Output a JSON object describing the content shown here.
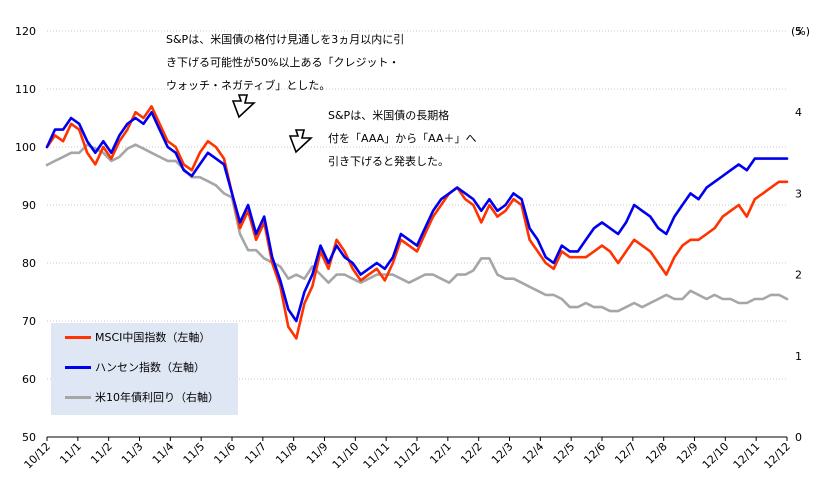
{
  "chart_data": {
    "type": "line",
    "title": "",
    "left_axis": {
      "ylim": [
        50,
        120
      ],
      "ticks": [
        50,
        60,
        70,
        80,
        90,
        100,
        110,
        120
      ]
    },
    "right_axis": {
      "ylim": [
        0,
        5
      ],
      "ticks": [
        0,
        1,
        2,
        3,
        4,
        5
      ],
      "unit": "(%)"
    },
    "grid": "dotted horizontal",
    "x_labels": [
      "10/12",
      "11/1",
      "11/2",
      "11/3",
      "11/4",
      "11/5",
      "11/6",
      "11/7",
      "11/8",
      "11/9",
      "11/10",
      "11/11",
      "11/12",
      "12/1",
      "12/2",
      "12/3",
      "12/4",
      "12/5",
      "12/6",
      "12/7",
      "12/8",
      "12/9",
      "12/10",
      "12/11",
      "12/12"
    ],
    "series": [
      {
        "name": "MSCI中国指数（左軸）",
        "axis": "left",
        "color": "#ff3300",
        "values": [
          100,
          102,
          101,
          104,
          103,
          99,
          97,
          100,
          98,
          101,
          103,
          106,
          105,
          107,
          104,
          101,
          100,
          97,
          96,
          99,
          101,
          100,
          98,
          92,
          86,
          89,
          84,
          87,
          80,
          76,
          69,
          67,
          73,
          76,
          82,
          79,
          84,
          82,
          79,
          77,
          78,
          79,
          77,
          80,
          84,
          83,
          82,
          85,
          88,
          90,
          92,
          93,
          91,
          90,
          87,
          90,
          88,
          89,
          91,
          90,
          84,
          82,
          80,
          79,
          82,
          81,
          81,
          81,
          82,
          83,
          82,
          80,
          82,
          84,
          83,
          82,
          80,
          78,
          81,
          83,
          84,
          84,
          85,
          86,
          88,
          89,
          90,
          88,
          91,
          92,
          93,
          94,
          94
        ]
      },
      {
        "name": "ハンセン指数（左軸）",
        "axis": "left",
        "color": "#0000ee",
        "values": [
          100,
          103,
          103,
          105,
          104,
          101,
          99,
          101,
          99,
          102,
          104,
          105,
          104,
          106,
          103,
          100,
          99,
          96,
          95,
          97,
          99,
          98,
          97,
          92,
          87,
          90,
          85,
          88,
          81,
          77,
          72,
          70,
          75,
          78,
          83,
          80,
          83,
          81,
          80,
          78,
          79,
          80,
          79,
          81,
          85,
          84,
          83,
          86,
          89,
          91,
          92,
          93,
          92,
          91,
          89,
          91,
          89,
          90,
          92,
          91,
          86,
          84,
          81,
          80,
          83,
          82,
          82,
          84,
          86,
          87,
          86,
          85,
          87,
          90,
          89,
          88,
          86,
          85,
          88,
          90,
          92,
          91,
          93,
          94,
          95,
          96,
          97,
          96,
          98,
          98,
          98,
          98,
          98
        ]
      },
      {
        "name": "米10年債利回り（右軸）",
        "axis": "right",
        "color": "#a6a6a6",
        "values": [
          3.35,
          3.4,
          3.45,
          3.5,
          3.5,
          3.6,
          3.55,
          3.5,
          3.4,
          3.45,
          3.55,
          3.6,
          3.55,
          3.5,
          3.45,
          3.4,
          3.4,
          3.3,
          3.2,
          3.2,
          3.15,
          3.1,
          3.0,
          2.95,
          2.5,
          2.3,
          2.3,
          2.2,
          2.15,
          2.1,
          1.95,
          2.0,
          1.95,
          2.1,
          2.0,
          1.9,
          2.0,
          2.0,
          1.95,
          1.9,
          1.95,
          2.0,
          2.0,
          2.0,
          1.95,
          1.9,
          1.95,
          2.0,
          2.0,
          1.95,
          1.9,
          2.0,
          2.0,
          2.05,
          2.2,
          2.2,
          2.0,
          1.95,
          1.95,
          1.9,
          1.85,
          1.8,
          1.75,
          1.75,
          1.7,
          1.6,
          1.6,
          1.65,
          1.6,
          1.6,
          1.55,
          1.55,
          1.6,
          1.65,
          1.6,
          1.65,
          1.7,
          1.75,
          1.7,
          1.7,
          1.8,
          1.75,
          1.7,
          1.75,
          1.7,
          1.7,
          1.65,
          1.65,
          1.7,
          1.7,
          1.75,
          1.75,
          1.7
        ]
      }
    ]
  },
  "annotations": {
    "first": {
      "lines": [
        "S&Pは、米国債の格付け見通しを3ヵ月以内に引",
        "き下げる可能性が50%以上ある「クレジット・",
        "ウォッチ・ネガティブ」とした。"
      ]
    },
    "second": {
      "lines": [
        "S&Pは、米国債の長期格",
        "付を「AAA」から「AA＋」へ",
        "引き下げると発表した。"
      ]
    }
  },
  "colors": {
    "msci": "#ff3300",
    "hang_seng": "#0000ee",
    "us10y": "#a6a6a6",
    "legend_bg": "#dfe7f4"
  }
}
